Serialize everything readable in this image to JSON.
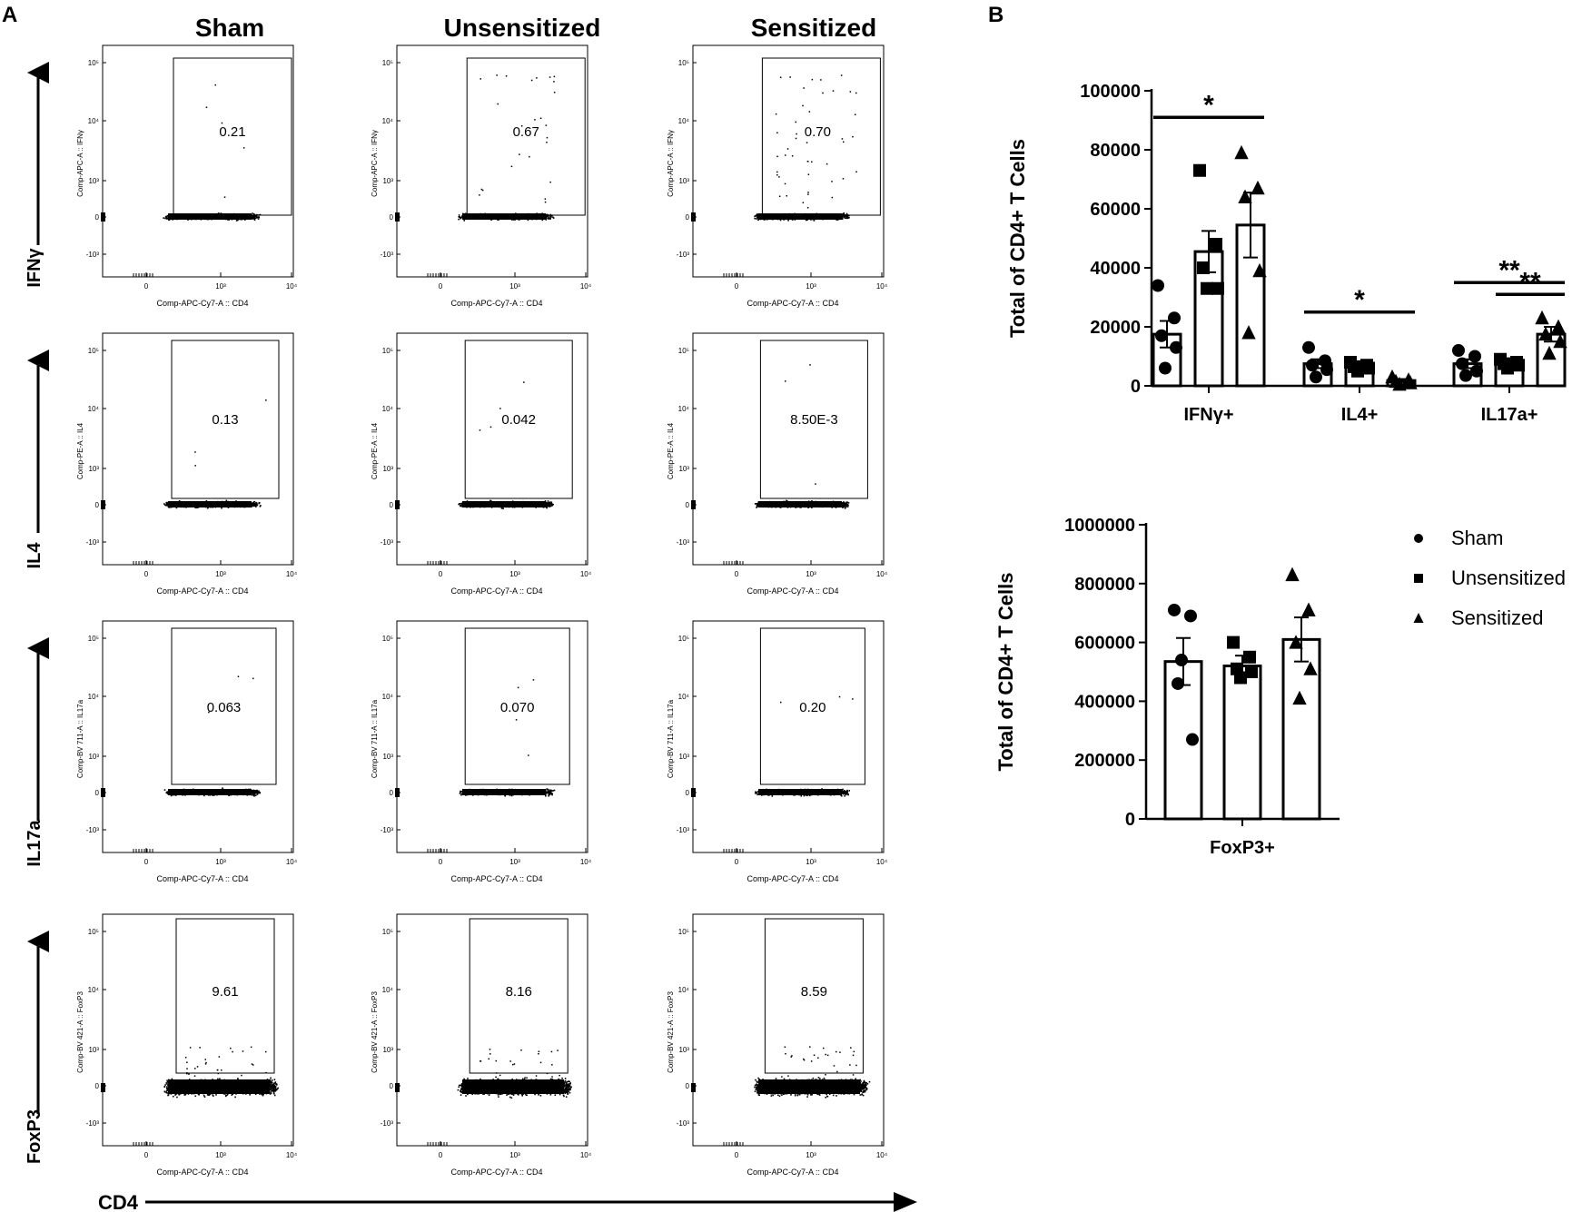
{
  "panel_labels": {
    "a": "A",
    "b": "B"
  },
  "columns": [
    "Sham",
    "Unsensitized",
    "Sensitized"
  ],
  "rows": [
    {
      "marker": "IFNγ",
      "ylabel": "Comp-APC-A :: IFNγ",
      "gates": [
        "0.21",
        "0.67",
        "0.70"
      ]
    },
    {
      "marker": "IL4",
      "ylabel": "Comp-PE-A :: IL4",
      "gates": [
        "0.13",
        "0.042",
        "8.50E-3"
      ]
    },
    {
      "marker": "IL17a",
      "ylabel": "Comp-BV 711-A :: IL17a",
      "gates": [
        "0.063",
        "0.070",
        "0.20"
      ]
    },
    {
      "marker": "FoxP3",
      "ylabel": "Comp-BV 421-A :: FoxP3",
      "gates": [
        "9.61",
        "8.16",
        "8.59"
      ]
    }
  ],
  "flow_axis": {
    "xlabel": "Comp-APC-Cy7-A :: CD4",
    "xticks": [
      "0",
      "10³",
      "10⁴"
    ],
    "yticks": [
      "10⁵",
      "10⁴",
      "10³",
      "0",
      "-10³"
    ]
  },
  "cd4_label": "CD4",
  "chart_data": [
    {
      "type": "bar",
      "title": "",
      "xlabel": "",
      "ylabel": "Total of CD4+ T Cells",
      "ylim": [
        0,
        100000
      ],
      "yticks": [
        "0",
        "20000",
        "40000",
        "60000",
        "80000",
        "100000"
      ],
      "categories": [
        "IFNγ+",
        "IL4+",
        "IL17a+"
      ],
      "series": [
        {
          "name": "Sham",
          "marker": "circle",
          "values": [
            17500,
            7500,
            7500
          ],
          "sem": [
            4500,
            1500,
            1500
          ],
          "points": [
            [
              34000,
              23000,
              17000,
              13000,
              6000
            ],
            [
              13000,
              8500,
              7000,
              5500,
              3000
            ],
            [
              12000,
              10000,
              7500,
              5000,
              3500
            ]
          ]
        },
        {
          "name": "Unsensitized",
          "marker": "square",
          "values": [
            45500,
            6500,
            7500
          ],
          "sem": [
            7000,
            1000,
            1000
          ],
          "points": [
            [
              73000,
              48000,
              40000,
              33000,
              33000
            ],
            [
              8000,
              7000,
              6500,
              6000,
              5000
            ],
            [
              9000,
              8000,
              7500,
              7000,
              6000
            ]
          ]
        },
        {
          "name": "Sensitized",
          "marker": "triangle",
          "values": [
            54500,
            1800,
            17500
          ],
          "sem": [
            11000,
            500,
            2500
          ],
          "points": [
            [
              79000,
              67000,
              64000,
              39000,
              18000
            ],
            [
              3000,
              2000,
              1500,
              1000,
              500
            ],
            [
              23000,
              20000,
              17500,
              15000,
              11000
            ]
          ]
        }
      ],
      "significance": [
        {
          "label": "*",
          "category": "IFNγ+",
          "from": "Sham",
          "to": "Sensitized"
        },
        {
          "label": "*",
          "category": "IL4+",
          "from": "Sham",
          "to": "Sensitized"
        },
        {
          "label": "**",
          "category": "IL17a+",
          "from": "Sham",
          "to": "Sensitized"
        },
        {
          "label": "**",
          "category": "IL17a+",
          "from": "Unsensitized",
          "to": "Sensitized"
        }
      ]
    },
    {
      "type": "bar",
      "title": "",
      "xlabel": "",
      "ylabel": "Total of CD4+ T Cells",
      "ylim": [
        0,
        1000000
      ],
      "yticks": [
        "0",
        "200000",
        "400000",
        "600000",
        "800000",
        "1000000"
      ],
      "categories": [
        "FoxP3+"
      ],
      "series": [
        {
          "name": "Sham",
          "marker": "circle",
          "values": [
            535000
          ],
          "sem": [
            80000
          ],
          "points": [
            [
              710000,
              690000,
              460000,
              270000,
              540000
            ]
          ]
        },
        {
          "name": "Unsensitized",
          "marker": "square",
          "values": [
            520000
          ],
          "sem": [
            35000
          ],
          "points": [
            [
              600000,
              550000,
              510000,
              500000,
              480000
            ]
          ]
        },
        {
          "name": "Sensitized",
          "marker": "triangle",
          "values": [
            610000
          ],
          "sem": [
            75000
          ],
          "points": [
            [
              830000,
              710000,
              600000,
              510000,
              410000
            ]
          ]
        }
      ]
    }
  ],
  "legend": {
    "position": "right",
    "entries": [
      "Sham",
      "Unsensitized",
      "Sensitized"
    ]
  }
}
